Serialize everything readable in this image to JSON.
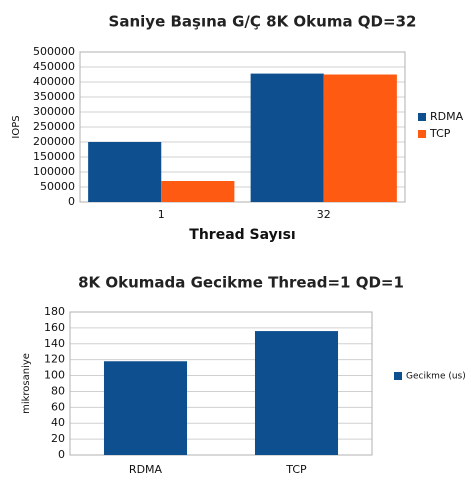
{
  "chart_data": [
    {
      "type": "bar",
      "title": "Saniye Başına G/Ç 8K Okuma QD=32",
      "y_label": "IOPS",
      "x_label": "Thread Sayısı",
      "categories": [
        "1",
        "32"
      ],
      "series": [
        {
          "name": "RDMA",
          "color": "#0e4f8f",
          "values": [
            200000,
            428000
          ]
        },
        {
          "name": "TCP",
          "color": "#ff5a12",
          "values": [
            70000,
            425000
          ]
        }
      ],
      "ylim": [
        0,
        500000
      ],
      "yticks": [
        0,
        50000,
        100000,
        150000,
        200000,
        250000,
        300000,
        350000,
        400000,
        450000,
        500000
      ],
      "grid": true,
      "legend": "right"
    },
    {
      "type": "bar",
      "title": "8K Okumada Gecikme Thread=1 QD=1",
      "y_label": "mikrosaniye",
      "categories": [
        "RDMA",
        "TCP"
      ],
      "series": [
        {
          "name": "Gecikme (us)",
          "color": "#0e4f8f",
          "values": [
            118,
            156
          ]
        }
      ],
      "ylim": [
        0,
        180
      ],
      "yticks": [
        0,
        20,
        40,
        60,
        80,
        100,
        120,
        140,
        160,
        180
      ],
      "grid": true,
      "legend": "right"
    }
  ]
}
